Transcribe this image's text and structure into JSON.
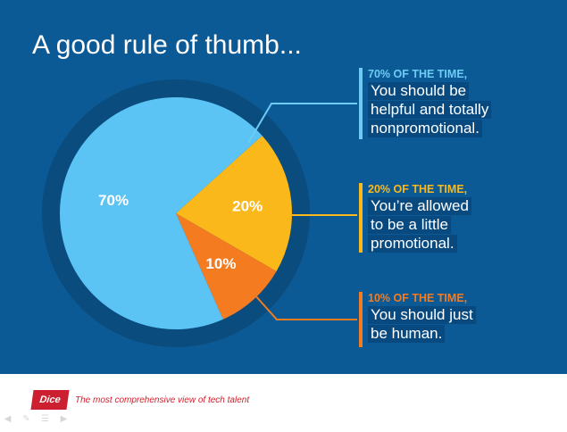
{
  "title": "A good rule of thumb...",
  "chart_data": {
    "type": "pie",
    "slices": [
      {
        "label": "70%",
        "value": 70,
        "color": "#5bc4f5"
      },
      {
        "label": "20%",
        "value": 20,
        "color": "#fbb81a"
      },
      {
        "label": "10%",
        "value": 10,
        "color": "#f47b20"
      }
    ]
  },
  "callouts": [
    {
      "heading": "70% OF THE TIME,",
      "lines": [
        "You should be",
        "helpful and totally",
        "nonpromotional."
      ],
      "color": "#6ecbf5"
    },
    {
      "heading": "20% OF THE TIME,",
      "lines": [
        "You’re allowed",
        "to be a little",
        "promotional."
      ],
      "color": "#fbb81a"
    },
    {
      "heading": "10% OF THE TIME,",
      "lines": [
        "You should just",
        "be human."
      ],
      "color": "#f47b20"
    }
  ],
  "footer": {
    "logo_text": "Dice",
    "tagline": "The most comprehensive view of tech talent"
  },
  "colors": {
    "background": "#0b5a95",
    "ring": "#0a4c7e"
  }
}
